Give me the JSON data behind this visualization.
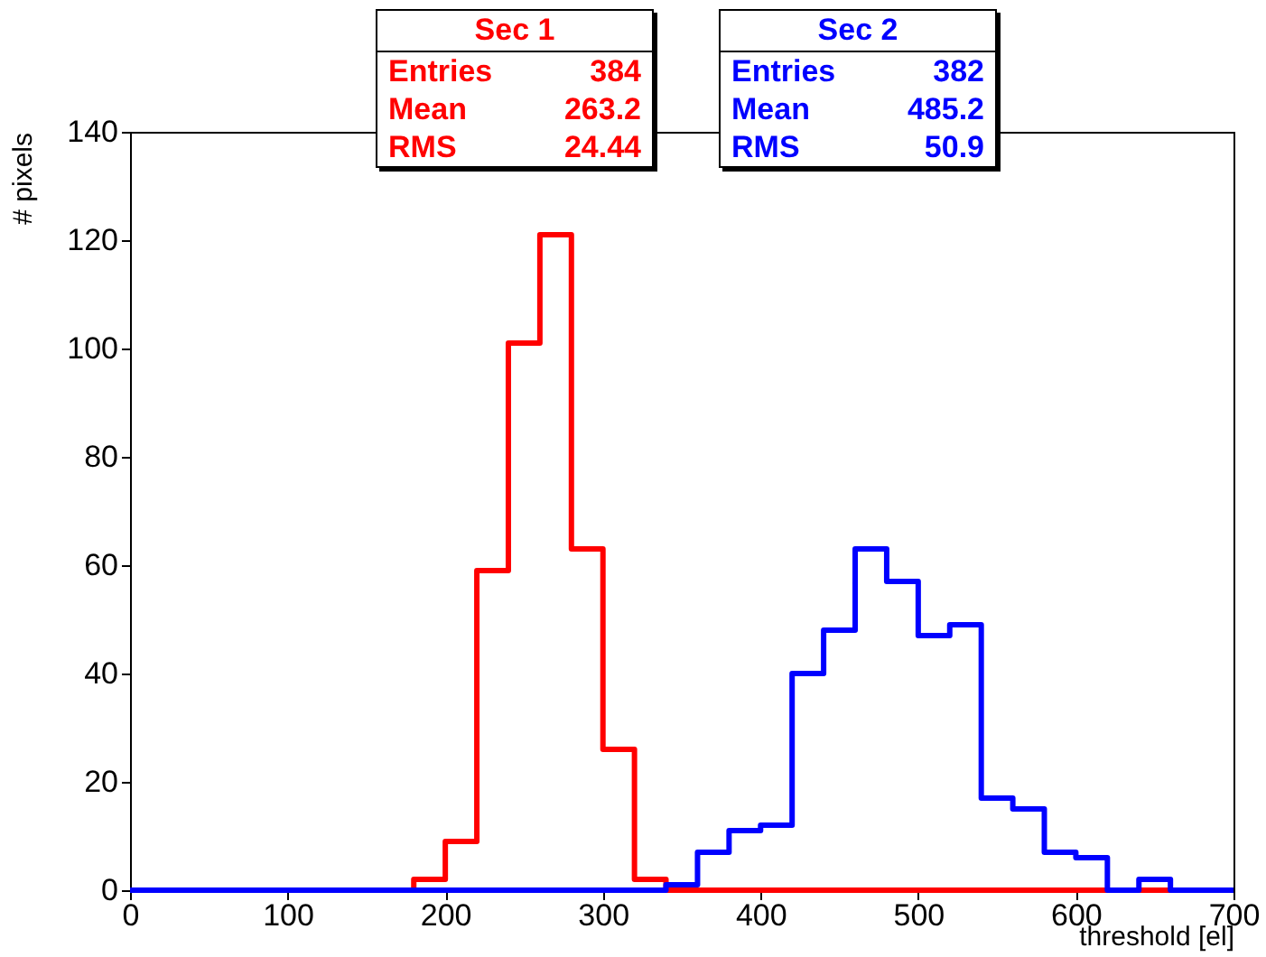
{
  "chart_data": {
    "type": "histogram",
    "xlabel": "threshold [el]",
    "ylabel": "# pixels",
    "bins": [
      0,
      20,
      40,
      60,
      80,
      100,
      120,
      140,
      160,
      180,
      200,
      220,
      240,
      260,
      280,
      300,
      320,
      340,
      360,
      380,
      400,
      420,
      440,
      460,
      480,
      500,
      520,
      540,
      560,
      580,
      600,
      620,
      640,
      660,
      680,
      700
    ],
    "series": [
      {
        "name": "Sec 1",
        "color": "#ff0000",
        "values": [
          0,
          0,
          0,
          0,
          0,
          0,
          0,
          0,
          0,
          2,
          9,
          59,
          101,
          121,
          63,
          26,
          2,
          0,
          0,
          0,
          0,
          0,
          0,
          0,
          0,
          0,
          0,
          0,
          0,
          0,
          0,
          0,
          0,
          0,
          0
        ]
      },
      {
        "name": "Sec 2",
        "color": "#0000ff",
        "values": [
          0,
          0,
          0,
          0,
          0,
          0,
          0,
          0,
          0,
          0,
          0,
          0,
          0,
          0,
          0,
          0,
          0,
          1,
          7,
          11,
          12,
          40,
          48,
          63,
          57,
          47,
          49,
          17,
          15,
          7,
          6,
          0,
          2,
          0,
          0
        ]
      }
    ],
    "annotations": [
      "Entries",
      "384",
      "Mean",
      "263.2",
      "RMS",
      "24.44",
      "Entries",
      "382",
      "Mean",
      "485.2",
      "RMS",
      "50.9"
    ],
    "xlim": [
      0,
      700
    ],
    "xticks": [
      0,
      100,
      200,
      300,
      400,
      500,
      600,
      700
    ],
    "ylim": [
      0,
      140
    ],
    "yticks": [
      0,
      20,
      40,
      60,
      80,
      100,
      120,
      140
    ],
    "grid": false,
    "legend": "top"
  }
}
